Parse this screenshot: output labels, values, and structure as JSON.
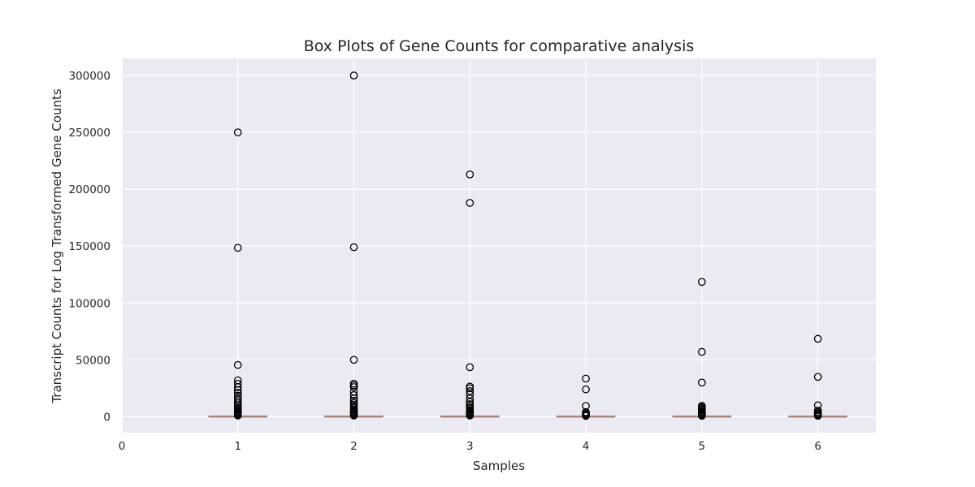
{
  "chart_data": {
    "type": "box",
    "title": "Box Plots of Gene Counts for comparative analysis",
    "xlabel": "Samples",
    "ylabel": "Transcript Counts for Log Transformed Gene Counts",
    "xlim": [
      0,
      6.5
    ],
    "ylim": [
      -14000,
      315000
    ],
    "x_ticks": [
      0,
      1,
      2,
      3,
      4,
      5,
      6
    ],
    "y_ticks": [
      0,
      50000,
      100000,
      150000,
      200000,
      250000,
      300000
    ],
    "grid": true,
    "background_color": "#eaeaf2",
    "grid_color": "#ffffff",
    "median_color": "#c0806a",
    "box_color": "#555555",
    "series": [
      {
        "position": 1,
        "median": 0,
        "q1": 0,
        "q3": 200,
        "whisker_low": 0,
        "whisker_high": 500,
        "outliers": [
          250000,
          148500,
          45500,
          32000,
          29000,
          26000,
          23500,
          21000,
          18500,
          16500,
          14500,
          12500,
          10500,
          9000,
          7500,
          6000,
          5000,
          4000,
          3000,
          2200,
          1500,
          1000
        ]
      },
      {
        "position": 2,
        "median": 0,
        "q1": 0,
        "q3": 200,
        "whisker_low": 0,
        "whisker_high": 500,
        "outliers": [
          300000,
          149000,
          50000,
          29000,
          27500,
          26000,
          22000,
          19000,
          16000,
          14000,
          12000,
          10500,
          9000,
          7500,
          6000,
          5000,
          4000,
          3000,
          2200,
          1500,
          1000
        ]
      },
      {
        "position": 3,
        "median": 0,
        "q1": 0,
        "q3": 200,
        "whisker_low": 0,
        "whisker_high": 500,
        "outliers": [
          213000,
          188000,
          43500,
          26500,
          25000,
          22500,
          19500,
          16000,
          13000,
          11000,
          9000,
          7500,
          6000,
          5000,
          4000,
          3000,
          2200,
          1500,
          1000
        ]
      },
      {
        "position": 4,
        "median": 0,
        "q1": 0,
        "q3": 150,
        "whisker_low": 0,
        "whisker_high": 400,
        "outliers": [
          33500,
          24000,
          9500,
          4000,
          3000,
          2000,
          1200,
          700
        ]
      },
      {
        "position": 5,
        "median": 0,
        "q1": 0,
        "q3": 200,
        "whisker_low": 0,
        "whisker_high": 500,
        "outliers": [
          118500,
          57000,
          30000,
          9500,
          8500,
          7500,
          6500,
          5500,
          4500,
          3500,
          2600,
          1800,
          1200,
          800
        ]
      },
      {
        "position": 6,
        "median": 0,
        "q1": 0,
        "q3": 150,
        "whisker_low": 0,
        "whisker_high": 400,
        "outliers": [
          68500,
          35000,
          10000,
          5500,
          4000,
          3000,
          2000,
          1300,
          800
        ]
      }
    ]
  }
}
